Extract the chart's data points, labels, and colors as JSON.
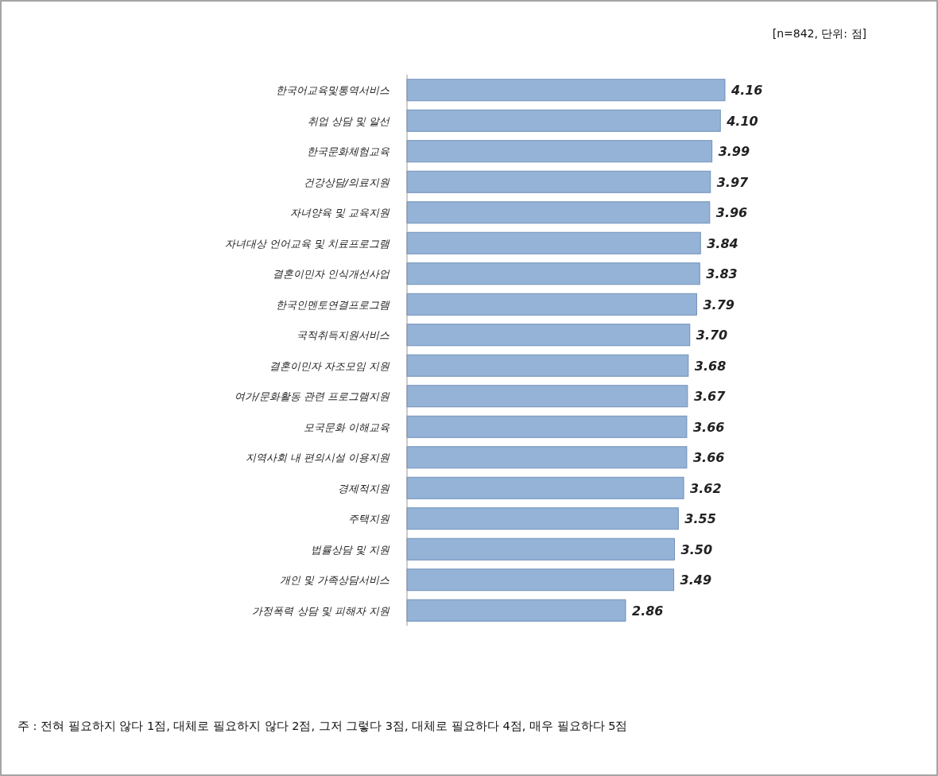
{
  "chart_data": {
    "type": "bar",
    "orientation": "horizontal",
    "categories": [
      "한국어교육및통역서비스",
      "취업 상담 및 알선",
      "한국문화체험교육",
      "건강상담/의료지원",
      "자녀양육 및 교육지원",
      "자녀대상 언어교육 및 치료프로그램",
      "결혼이민자 인식개선사업",
      "한국인멘토연결프로그램",
      "국적취득지원서비스",
      "결혼이민자 자조모임 지원",
      "여가/문화활동 관련 프로그램지원",
      "모국문화 이해교육",
      "지역사회 내 편의시설 이용지원",
      "경제적지원",
      "주택지원",
      "법률상담 및 지원",
      "개인 및 가족상담서비스",
      "가정폭력 상담 및 피해자 지원"
    ],
    "values": [
      4.16,
      4.1,
      3.99,
      3.97,
      3.96,
      3.84,
      3.83,
      3.79,
      3.7,
      3.68,
      3.67,
      3.66,
      3.66,
      3.62,
      3.55,
      3.5,
      3.49,
      2.86
    ],
    "color": "#95b3d7",
    "value_labels": [
      "4.16",
      "4.10",
      "3.99",
      "3.97",
      "3.96",
      "3.84",
      "3.83",
      "3.79",
      "3.70",
      "3.68",
      "3.67",
      "3.66",
      "3.66",
      "3.62",
      "3.55",
      "3.50",
      "3.49",
      "2.86"
    ],
    "annotations": [
      "[n=842, 단위: 점]",
      "주 : 전혀 필요하지 않다 1점, 대체로 필요하지 않다 2점, 그저 그렇다 3점, 대체로 필요하다 4점, 매우 필요하다 5점"
    ]
  }
}
